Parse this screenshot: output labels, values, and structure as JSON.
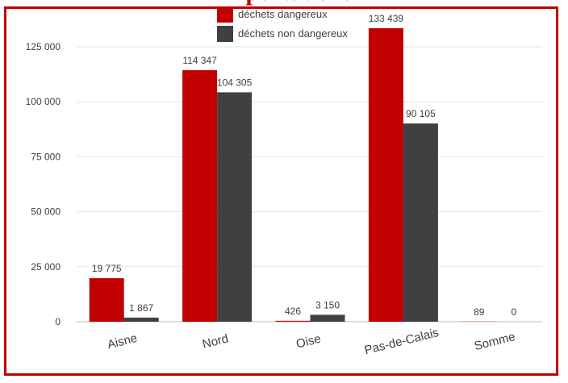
{
  "chart_data": {
    "type": "bar",
    "title": "Importations",
    "categories": [
      "Aisne",
      "Nord",
      "Oise",
      "Pas-de-Calais",
      "Somme"
    ],
    "series": [
      {
        "name": "déchets dangereux",
        "color": "#c00000",
        "values": [
          19775,
          114347,
          426,
          133439,
          89
        ],
        "labels": [
          "19 775",
          "114 347",
          "426",
          "133 439",
          "89"
        ]
      },
      {
        "name": "déchets non dangereux",
        "color": "#404040",
        "values": [
          1867,
          104305,
          3150,
          90105,
          0
        ],
        "labels": [
          "1 867",
          "104 305",
          "3 150",
          "90 105",
          "0"
        ]
      }
    ],
    "ylim": [
      0,
      135000
    ],
    "yticks": [
      0,
      25000,
      50000,
      75000,
      100000,
      125000
    ],
    "ytick_labels": [
      "0",
      "25 000",
      "50 000",
      "75 000",
      "100 000",
      "125 000"
    ],
    "grid": true,
    "legend_position": "top-center",
    "xlabel": "",
    "ylabel": ""
  }
}
